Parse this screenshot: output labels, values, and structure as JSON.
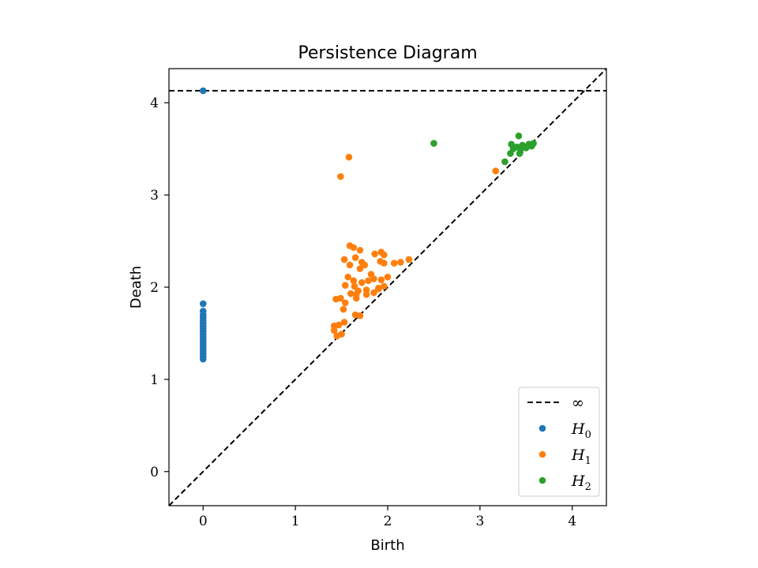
{
  "chart_data": {
    "type": "scatter",
    "title": "Persistence Diagram",
    "xlabel": "Birth",
    "ylabel": "Death",
    "xlim": [
      -0.37,
      4.37
    ],
    "ylim": [
      -0.37,
      4.37
    ],
    "xticks": [
      0,
      1,
      2,
      3,
      4
    ],
    "yticks": [
      0,
      1,
      2,
      3,
      4
    ],
    "grid": false,
    "legend_position": "bottom-right",
    "infinity_line": {
      "label": "∞",
      "y": 4.13,
      "color": "#000000",
      "style": "dashed"
    },
    "diagonal": {
      "color": "#000000",
      "style": "dashed"
    },
    "series": [
      {
        "name": "H",
        "subscript": "0",
        "color": "#1f77b4",
        "points": [
          [
            0,
            4.13
          ],
          [
            0,
            1.82
          ],
          [
            0,
            1.74
          ],
          [
            0,
            1.7
          ],
          [
            0,
            1.67
          ],
          [
            0,
            1.64
          ],
          [
            0,
            1.61
          ],
          [
            0,
            1.58
          ],
          [
            0,
            1.55
          ],
          [
            0,
            1.52
          ],
          [
            0,
            1.49
          ],
          [
            0,
            1.46
          ],
          [
            0,
            1.43
          ],
          [
            0,
            1.4
          ],
          [
            0,
            1.37
          ],
          [
            0,
            1.34
          ],
          [
            0,
            1.31
          ],
          [
            0,
            1.28
          ],
          [
            0,
            1.25
          ],
          [
            0,
            1.22
          ]
        ]
      },
      {
        "name": "H",
        "subscript": "1",
        "color": "#ff7f0e",
        "points": [
          [
            1.58,
            3.41
          ],
          [
            1.49,
            3.2
          ],
          [
            3.17,
            3.26
          ],
          [
            1.59,
            2.45
          ],
          [
            1.63,
            2.43
          ],
          [
            1.7,
            2.4
          ],
          [
            1.86,
            2.36
          ],
          [
            1.93,
            2.38
          ],
          [
            1.96,
            2.35
          ],
          [
            1.53,
            2.3
          ],
          [
            1.65,
            2.32
          ],
          [
            1.72,
            2.27
          ],
          [
            1.75,
            2.24
          ],
          [
            1.92,
            2.28
          ],
          [
            1.96,
            2.26
          ],
          [
            1.59,
            2.24
          ],
          [
            1.7,
            2.2
          ],
          [
            1.82,
            2.14
          ],
          [
            2.07,
            2.26
          ],
          [
            2.14,
            2.27
          ],
          [
            2.23,
            2.3
          ],
          [
            1.57,
            2.11
          ],
          [
            1.63,
            2.07
          ],
          [
            1.72,
            2.05
          ],
          [
            1.79,
            2.07
          ],
          [
            1.85,
            2.09
          ],
          [
            1.93,
            2.08
          ],
          [
            2.0,
            2.11
          ],
          [
            1.54,
            2.02
          ],
          [
            1.64,
            2.01
          ],
          [
            1.68,
            1.96
          ],
          [
            1.77,
            1.97
          ],
          [
            1.9,
            1.98
          ],
          [
            1.96,
            2.01
          ],
          [
            1.6,
            1.93
          ],
          [
            1.66,
            1.92
          ],
          [
            1.77,
            1.92
          ],
          [
            1.85,
            1.94
          ],
          [
            1.9,
            1.99
          ],
          [
            1.44,
            1.87
          ],
          [
            1.49,
            1.88
          ],
          [
            1.54,
            1.83
          ],
          [
            1.66,
            1.88
          ],
          [
            1.52,
            1.76
          ],
          [
            1.65,
            1.7
          ],
          [
            1.7,
            1.69
          ],
          [
            1.53,
            1.62
          ],
          [
            1.42,
            1.58
          ],
          [
            1.47,
            1.59
          ],
          [
            1.42,
            1.53
          ],
          [
            1.5,
            1.49
          ],
          [
            1.45,
            1.47
          ]
        ]
      },
      {
        "name": "H",
        "subscript": "2",
        "color": "#2ca02c",
        "points": [
          [
            2.5,
            3.56
          ],
          [
            3.42,
            3.64
          ],
          [
            3.34,
            3.55
          ],
          [
            3.4,
            3.52
          ],
          [
            3.46,
            3.54
          ],
          [
            3.53,
            3.55
          ],
          [
            3.58,
            3.56
          ],
          [
            3.36,
            3.5
          ],
          [
            3.44,
            3.49
          ],
          [
            3.5,
            3.51
          ],
          [
            3.56,
            3.53
          ],
          [
            3.33,
            3.45
          ],
          [
            3.43,
            3.45
          ],
          [
            3.27,
            3.36
          ]
        ]
      }
    ]
  }
}
